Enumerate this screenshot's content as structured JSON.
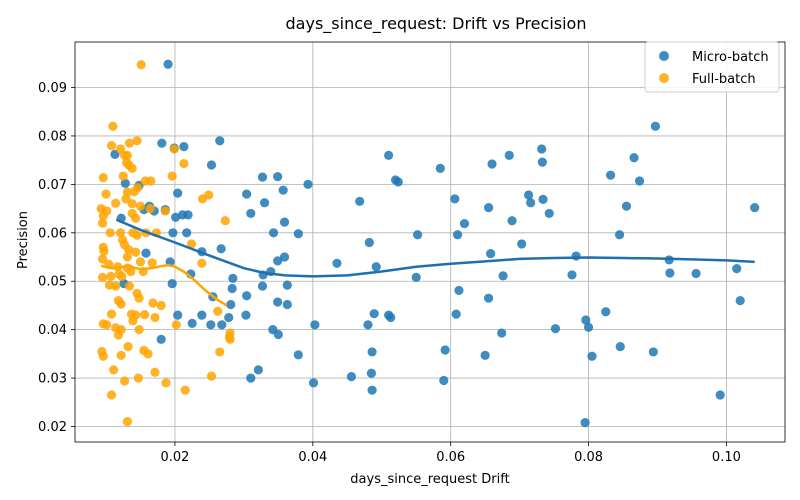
{
  "chart_data": {
    "type": "scatter",
    "title": "days_since_request: Drift vs Precision",
    "xlabel": "days_since_request Drift",
    "ylabel": "Precision",
    "xlim": [
      0.0055,
      0.1085
    ],
    "ylim": [
      0.0168,
      0.0994
    ],
    "xticks": [
      0.02,
      0.04,
      0.06,
      0.08,
      0.1
    ],
    "xtick_labels": [
      "0.02",
      "0.04",
      "0.06",
      "0.08",
      "0.10"
    ],
    "yticks": [
      0.02,
      0.03,
      0.04,
      0.05,
      0.06,
      0.07,
      0.08,
      0.09
    ],
    "ytick_labels": [
      "0.02",
      "0.03",
      "0.04",
      "0.05",
      "0.06",
      "0.07",
      "0.08",
      "0.09"
    ],
    "grid": true,
    "legend": {
      "placement": "top-right"
    },
    "series": [
      {
        "name": "Micro-batch",
        "color": "#1f77b4",
        "points": [
          [
            0.0113,
            0.0762
          ],
          [
            0.0128,
            0.0702
          ],
          [
            0.0148,
            0.0698
          ],
          [
            0.0163,
            0.0655
          ],
          [
            0.0155,
            0.0648
          ],
          [
            0.017,
            0.0645
          ],
          [
            0.0186,
            0.0648
          ],
          [
            0.0122,
            0.063
          ],
          [
            0.0201,
            0.0632
          ],
          [
            0.0211,
            0.0637
          ],
          [
            0.0219,
            0.0637
          ],
          [
            0.0181,
            0.0785
          ],
          [
            0.0213,
            0.0778
          ],
          [
            0.0265,
            0.079
          ],
          [
            0.0204,
            0.0682
          ],
          [
            0.0199,
            0.0775
          ],
          [
            0.0253,
            0.074
          ],
          [
            0.0158,
            0.0558
          ],
          [
            0.0197,
            0.06
          ],
          [
            0.0217,
            0.06
          ],
          [
            0.0239,
            0.0561
          ],
          [
            0.0193,
            0.054
          ],
          [
            0.0223,
            0.0515
          ],
          [
            0.0126,
            0.0495
          ],
          [
            0.0196,
            0.0495
          ],
          [
            0.0255,
            0.0468
          ],
          [
            0.0204,
            0.043
          ],
          [
            0.0239,
            0.043
          ],
          [
            0.0225,
            0.0413
          ],
          [
            0.0252,
            0.041
          ],
          [
            0.0268,
            0.041
          ],
          [
            0.0278,
            0.0425
          ],
          [
            0.0281,
            0.0452
          ],
          [
            0.0283,
            0.0485
          ],
          [
            0.0284,
            0.0506
          ],
          [
            0.018,
            0.038
          ],
          [
            0.019,
            0.0948
          ],
          [
            0.0267,
            0.0567
          ],
          [
            0.0304,
            0.068
          ],
          [
            0.031,
            0.064
          ],
          [
            0.0327,
            0.0715
          ],
          [
            0.033,
            0.0662
          ],
          [
            0.0349,
            0.0716
          ],
          [
            0.0357,
            0.0688
          ],
          [
            0.0359,
            0.0622
          ],
          [
            0.0343,
            0.06
          ],
          [
            0.0359,
            0.055
          ],
          [
            0.0349,
            0.0542
          ],
          [
            0.0339,
            0.052
          ],
          [
            0.0328,
            0.0513
          ],
          [
            0.0363,
            0.0492
          ],
          [
            0.0304,
            0.047
          ],
          [
            0.0327,
            0.049
          ],
          [
            0.0349,
            0.0457
          ],
          [
            0.0363,
            0.0452
          ],
          [
            0.0303,
            0.043
          ],
          [
            0.0342,
            0.04
          ],
          [
            0.035,
            0.039
          ],
          [
            0.0321,
            0.0317
          ],
          [
            0.031,
            0.03
          ],
          [
            0.0379,
            0.0598
          ],
          [
            0.0379,
            0.0348
          ],
          [
            0.0393,
            0.07
          ],
          [
            0.0401,
            0.029
          ],
          [
            0.0403,
            0.041
          ],
          [
            0.0435,
            0.0537
          ],
          [
            0.0456,
            0.0303
          ],
          [
            0.0468,
            0.0665
          ],
          [
            0.048,
            0.041
          ],
          [
            0.0482,
            0.058
          ],
          [
            0.0485,
            0.031
          ],
          [
            0.0486,
            0.0354
          ],
          [
            0.0486,
            0.0275
          ],
          [
            0.0489,
            0.0433
          ],
          [
            0.0492,
            0.053
          ],
          [
            0.051,
            0.076
          ],
          [
            0.051,
            0.043
          ],
          [
            0.0513,
            0.0425
          ],
          [
            0.052,
            0.0709
          ],
          [
            0.0524,
            0.0705
          ],
          [
            0.055,
            0.0508
          ],
          [
            0.0552,
            0.0596
          ],
          [
            0.0585,
            0.0733
          ],
          [
            0.059,
            0.0295
          ],
          [
            0.0592,
            0.0358
          ],
          [
            0.0606,
            0.067
          ],
          [
            0.0608,
            0.0432
          ],
          [
            0.061,
            0.0596
          ],
          [
            0.0612,
            0.0481
          ],
          [
            0.062,
            0.0619
          ],
          [
            0.065,
            0.0347
          ],
          [
            0.0655,
            0.0652
          ],
          [
            0.0655,
            0.0465
          ],
          [
            0.0658,
            0.0557
          ],
          [
            0.066,
            0.0742
          ],
          [
            0.0674,
            0.0393
          ],
          [
            0.0676,
            0.0511
          ],
          [
            0.0685,
            0.076
          ],
          [
            0.0689,
            0.0625
          ],
          [
            0.0703,
            0.0577
          ],
          [
            0.0713,
            0.0678
          ],
          [
            0.0716,
            0.0662
          ],
          [
            0.0732,
            0.0773
          ],
          [
            0.0733,
            0.0746
          ],
          [
            0.0734,
            0.0669
          ],
          [
            0.0743,
            0.064
          ],
          [
            0.0752,
            0.0402
          ],
          [
            0.0776,
            0.0513
          ],
          [
            0.0782,
            0.0552
          ],
          [
            0.0795,
            0.0208
          ],
          [
            0.0796,
            0.042
          ],
          [
            0.08,
            0.0405
          ],
          [
            0.0805,
            0.0345
          ],
          [
            0.0825,
            0.0437
          ],
          [
            0.0832,
            0.0719
          ],
          [
            0.0845,
            0.0596
          ],
          [
            0.0846,
            0.0365
          ],
          [
            0.0855,
            0.0655
          ],
          [
            0.0866,
            0.0755
          ],
          [
            0.0874,
            0.0707
          ],
          [
            0.0894,
            0.0354
          ],
          [
            0.0897,
            0.082
          ],
          [
            0.0917,
            0.0544
          ],
          [
            0.0918,
            0.0517
          ],
          [
            0.0956,
            0.0516
          ],
          [
            0.0991,
            0.0265
          ],
          [
            0.1015,
            0.0526
          ],
          [
            0.102,
            0.046
          ],
          [
            0.1041,
            0.0652
          ]
        ],
        "trend": [
          [
            0.0115,
            0.0627
          ],
          [
            0.015,
            0.0606
          ],
          [
            0.02,
            0.058
          ],
          [
            0.025,
            0.0553
          ],
          [
            0.03,
            0.0527
          ],
          [
            0.033,
            0.0517
          ],
          [
            0.036,
            0.0512
          ],
          [
            0.04,
            0.051
          ],
          [
            0.045,
            0.0512
          ],
          [
            0.05,
            0.052
          ],
          [
            0.055,
            0.053
          ],
          [
            0.06,
            0.0536
          ],
          [
            0.065,
            0.0541
          ],
          [
            0.07,
            0.0546
          ],
          [
            0.075,
            0.0548
          ],
          [
            0.08,
            0.0549
          ],
          [
            0.085,
            0.0548
          ],
          [
            0.09,
            0.0547
          ],
          [
            0.095,
            0.0545
          ],
          [
            0.1,
            0.0543
          ],
          [
            0.1041,
            0.054
          ]
        ]
      },
      {
        "name": "Full-batch",
        "color": "#ffa500",
        "points": [
          [
            0.0151,
            0.0947
          ],
          [
            0.011,
            0.082
          ],
          [
            0.0108,
            0.078
          ],
          [
            0.0121,
            0.0773
          ],
          [
            0.0134,
            0.0785
          ],
          [
            0.0145,
            0.079
          ],
          [
            0.0127,
            0.076
          ],
          [
            0.0131,
            0.076
          ],
          [
            0.013,
            0.0745
          ],
          [
            0.0133,
            0.074
          ],
          [
            0.0138,
            0.0733
          ],
          [
            0.0199,
            0.0773
          ],
          [
            0.0213,
            0.0743
          ],
          [
            0.0096,
            0.0714
          ],
          [
            0.0125,
            0.0717
          ],
          [
            0.0146,
            0.0693
          ],
          [
            0.0157,
            0.0707
          ],
          [
            0.0165,
            0.0707
          ],
          [
            0.0196,
            0.0717
          ],
          [
            0.0131,
            0.0684
          ],
          [
            0.0141,
            0.0685
          ],
          [
            0.01,
            0.068
          ],
          [
            0.0129,
            0.067
          ],
          [
            0.024,
            0.067
          ],
          [
            0.0249,
            0.0678
          ],
          [
            0.0114,
            0.0661
          ],
          [
            0.0138,
            0.066
          ],
          [
            0.0093,
            0.065
          ],
          [
            0.0101,
            0.0645
          ],
          [
            0.015,
            0.0655
          ],
          [
            0.0164,
            0.065
          ],
          [
            0.0186,
            0.0645
          ],
          [
            0.0096,
            0.0635
          ],
          [
            0.0138,
            0.064
          ],
          [
            0.0143,
            0.063
          ],
          [
            0.0095,
            0.062
          ],
          [
            0.0273,
            0.0625
          ],
          [
            0.0106,
            0.06
          ],
          [
            0.0121,
            0.06
          ],
          [
            0.0139,
            0.06
          ],
          [
            0.0145,
            0.0595
          ],
          [
            0.0158,
            0.06
          ],
          [
            0.0173,
            0.06
          ],
          [
            0.0124,
            0.0585
          ],
          [
            0.0127,
            0.0575
          ],
          [
            0.0133,
            0.0565
          ],
          [
            0.0143,
            0.056
          ],
          [
            0.0096,
            0.057
          ],
          [
            0.0097,
            0.0562
          ],
          [
            0.0131,
            0.055
          ],
          [
            0.015,
            0.054
          ],
          [
            0.0224,
            0.0577
          ],
          [
            0.0095,
            0.0546
          ],
          [
            0.0104,
            0.0535
          ],
          [
            0.0117,
            0.053
          ],
          [
            0.0131,
            0.0527
          ],
          [
            0.0119,
            0.0515
          ],
          [
            0.0136,
            0.052
          ],
          [
            0.0154,
            0.052
          ],
          [
            0.0123,
            0.051
          ],
          [
            0.0107,
            0.051
          ],
          [
            0.0095,
            0.0508
          ],
          [
            0.0167,
            0.0538
          ],
          [
            0.0239,
            0.0537
          ],
          [
            0.0105,
            0.0492
          ],
          [
            0.0114,
            0.049
          ],
          [
            0.0134,
            0.049
          ],
          [
            0.0145,
            0.0475
          ],
          [
            0.0148,
            0.0465
          ],
          [
            0.0118,
            0.046
          ],
          [
            0.0122,
            0.0453
          ],
          [
            0.0168,
            0.0455
          ],
          [
            0.018,
            0.045
          ],
          [
            0.0096,
            0.0412
          ],
          [
            0.0101,
            0.041
          ],
          [
            0.0108,
            0.0432
          ],
          [
            0.0137,
            0.0432
          ],
          [
            0.0143,
            0.043
          ],
          [
            0.0156,
            0.0431
          ],
          [
            0.0171,
            0.0425
          ],
          [
            0.0139,
            0.0418
          ],
          [
            0.0148,
            0.04
          ],
          [
            0.0114,
            0.0404
          ],
          [
            0.0118,
            0.0389
          ],
          [
            0.0122,
            0.04
          ],
          [
            0.0202,
            0.041
          ],
          [
            0.0262,
            0.0438
          ],
          [
            0.028,
            0.0393
          ],
          [
            0.0279,
            0.0385
          ],
          [
            0.028,
            0.038
          ],
          [
            0.0132,
            0.0365
          ],
          [
            0.0155,
            0.0357
          ],
          [
            0.0161,
            0.035
          ],
          [
            0.0122,
            0.0347
          ],
          [
            0.0094,
            0.0355
          ],
          [
            0.0096,
            0.0345
          ],
          [
            0.0111,
            0.0317
          ],
          [
            0.0171,
            0.0312
          ],
          [
            0.0127,
            0.0294
          ],
          [
            0.0147,
            0.03
          ],
          [
            0.0187,
            0.029
          ],
          [
            0.0215,
            0.0275
          ],
          [
            0.0253,
            0.0304
          ],
          [
            0.0265,
            0.0354
          ],
          [
            0.0108,
            0.0265
          ],
          [
            0.0131,
            0.021
          ]
        ],
        "trend": [
          [
            0.0093,
            0.0532
          ],
          [
            0.01,
            0.0529
          ],
          [
            0.011,
            0.0527
          ],
          [
            0.012,
            0.0528
          ],
          [
            0.0128,
            0.0531
          ],
          [
            0.0135,
            0.0532
          ],
          [
            0.014,
            0.0528
          ],
          [
            0.015,
            0.0525
          ],
          [
            0.0165,
            0.0527
          ],
          [
            0.018,
            0.0531
          ],
          [
            0.019,
            0.0533
          ],
          [
            0.02,
            0.053
          ],
          [
            0.0215,
            0.0518
          ],
          [
            0.023,
            0.05
          ],
          [
            0.0245,
            0.048
          ],
          [
            0.026,
            0.0463
          ],
          [
            0.0275,
            0.045
          ]
        ]
      }
    ]
  }
}
